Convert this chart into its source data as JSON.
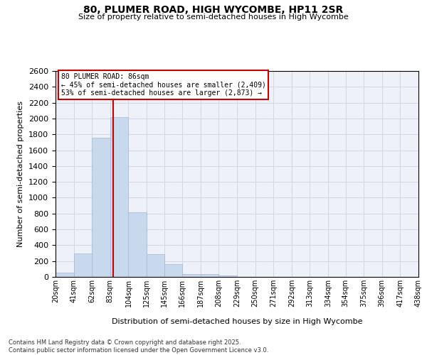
{
  "title": "80, PLUMER ROAD, HIGH WYCOMBE, HP11 2SR",
  "subtitle": "Size of property relative to semi-detached houses in High Wycombe",
  "xlabel": "Distribution of semi-detached houses by size in High Wycombe",
  "ylabel": "Number of semi-detached properties",
  "property_label": "80 PLUMER ROAD: 86sqm",
  "arrow_smaller": "← 45% of semi-detached houses are smaller (2,409)",
  "arrow_larger": "53% of semi-detached houses are larger (2,873) →",
  "property_size": 86,
  "bin_edges": [
    20,
    41,
    62,
    83,
    104,
    125,
    145,
    166,
    187,
    208,
    229,
    250,
    271,
    292,
    313,
    334,
    354,
    375,
    396,
    417,
    438
  ],
  "bin_labels": [
    "20sqm",
    "41sqm",
    "62sqm",
    "83sqm",
    "104sqm",
    "125sqm",
    "145sqm",
    "166sqm",
    "187sqm",
    "208sqm",
    "229sqm",
    "250sqm",
    "271sqm",
    "292sqm",
    "313sqm",
    "334sqm",
    "354sqm",
    "375sqm",
    "396sqm",
    "417sqm",
    "438sqm"
  ],
  "bar_values": [
    50,
    300,
    1760,
    2020,
    820,
    290,
    160,
    40,
    40,
    20,
    0,
    0,
    0,
    0,
    0,
    0,
    0,
    0,
    0,
    0
  ],
  "bar_color": "#c9d9ed",
  "bar_edge_color": "#a0b8d8",
  "vline_x": 86,
  "vline_color": "#cc0000",
  "grid_color": "#d0d8e8",
  "bg_color": "#eef2f8",
  "box_color": "#cc0000",
  "ylim": [
    0,
    2600
  ],
  "yticks": [
    0,
    200,
    400,
    600,
    800,
    1000,
    1200,
    1400,
    1600,
    1800,
    2000,
    2200,
    2400,
    2600
  ],
  "footer": "Contains HM Land Registry data © Crown copyright and database right 2025.\nContains public sector information licensed under the Open Government Licence v3.0."
}
